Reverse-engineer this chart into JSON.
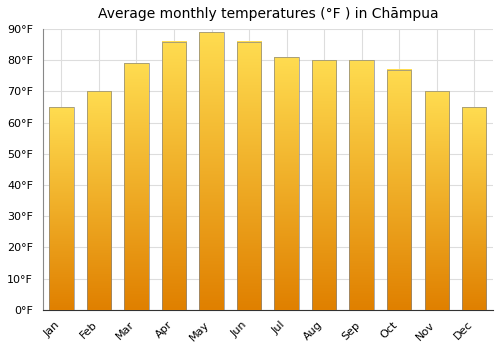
{
  "title": "Average monthly temperatures (°F ) in Chāmpua",
  "months": [
    "Jan",
    "Feb",
    "Mar",
    "Apr",
    "May",
    "Jun",
    "Jul",
    "Aug",
    "Sep",
    "Oct",
    "Nov",
    "Dec"
  ],
  "values": [
    65,
    70,
    79,
    86,
    89,
    86,
    81,
    80,
    80,
    77,
    70,
    65
  ],
  "bar_color_top": "#FFD966",
  "bar_color_bottom": "#E08000",
  "bar_color_mid": "#FFA500",
  "ylim": [
    0,
    90
  ],
  "yticks": [
    0,
    10,
    20,
    30,
    40,
    50,
    60,
    70,
    80,
    90
  ],
  "ytick_labels": [
    "0°F",
    "10°F",
    "20°F",
    "30°F",
    "40°F",
    "50°F",
    "60°F",
    "70°F",
    "80°F",
    "90°F"
  ],
  "bg_color": "#FFFFFF",
  "grid_color": "#DDDDDD",
  "title_fontsize": 10,
  "tick_fontsize": 8,
  "font_family": "DejaVu Sans"
}
